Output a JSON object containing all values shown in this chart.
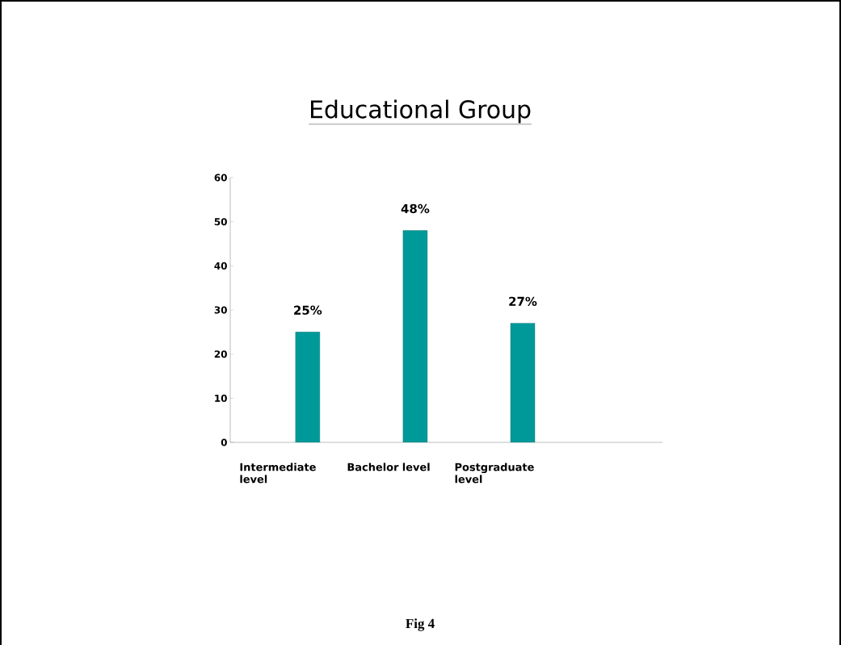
{
  "chart_data": {
    "type": "bar",
    "title": "Educational Group",
    "categories": [
      "Intermediate level",
      "Bachelor level",
      "Postgraduate level"
    ],
    "values": [
      25,
      48,
      27
    ],
    "color": "#009999",
    "value_labels": [
      "25%",
      "48%",
      "27%"
    ],
    "ylim": [
      0,
      60
    ],
    "yticks": [
      0,
      10,
      20,
      30,
      40,
      50,
      60
    ],
    "annotations": [
      "Fig 4"
    ]
  }
}
